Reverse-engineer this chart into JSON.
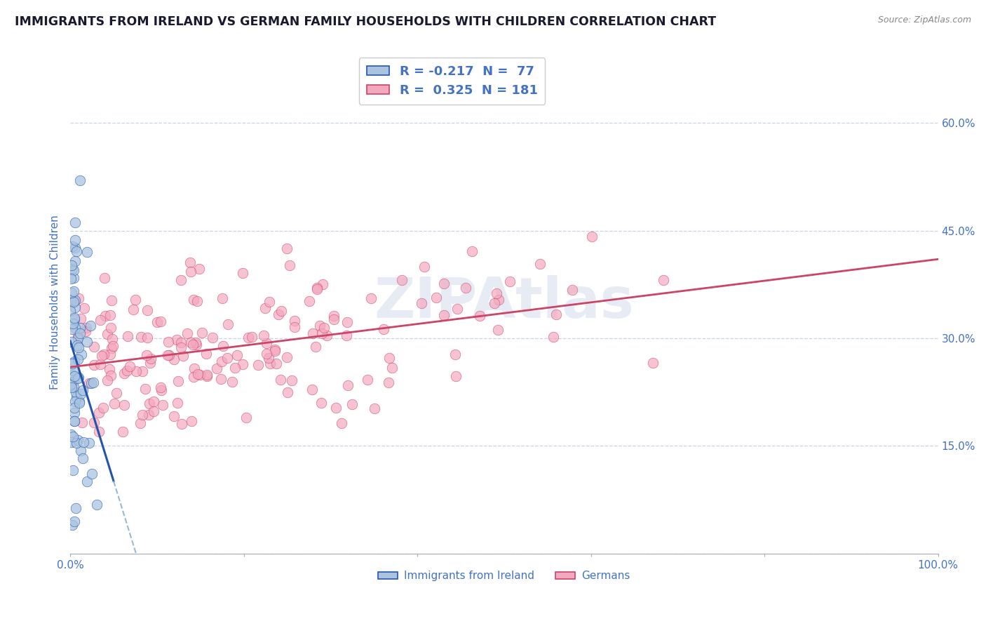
{
  "title": "IMMIGRANTS FROM IRELAND VS GERMAN FAMILY HOUSEHOLDS WITH CHILDREN CORRELATION CHART",
  "source": "Source: ZipAtlas.com",
  "ylabel": "Family Households with Children",
  "watermark": "ZIPAtlas",
  "legend_entry_blue": "R = -0.217  N =  77",
  "legend_entry_pink": "R =  0.325  N = 181",
  "bottom_legend": [
    "Immigrants from Ireland",
    "Germans"
  ],
  "xlim": [
    0.0,
    1.0
  ],
  "ylim": [
    0.0,
    0.7
  ],
  "x_ticks": [
    0.0,
    0.2,
    0.4,
    0.6,
    0.8,
    1.0
  ],
  "x_tick_labels": [
    "0.0%",
    "",
    "",
    "",
    "",
    "100.0%"
  ],
  "y_ticks": [
    0.0,
    0.15,
    0.3,
    0.45,
    0.6
  ],
  "y_tick_labels": [
    "",
    "15.0%",
    "30.0%",
    "45.0%",
    "60.0%"
  ],
  "background_color": "#ffffff",
  "grid_color": "#c8d4e8",
  "title_color": "#1a1a2e",
  "axis_label_color": "#4472c4",
  "blue_dot_color": "#aac4e0",
  "pink_dot_color": "#f4a8c0",
  "blue_line_color": "#2255aa",
  "pink_line_color": "#cc4466",
  "blue_line_dashed_color": "#99b8d8"
}
